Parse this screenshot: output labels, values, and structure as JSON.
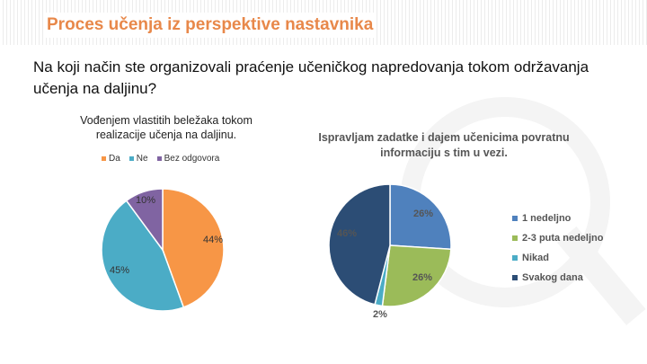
{
  "slide": {
    "title": "Proces učenja iz perspektive nastavnika",
    "question": "Na koji način ste organizovali praćenje učeničkog napredovanja tokom održavanja učenja na daljinu?"
  },
  "chart_data": [
    {
      "type": "pie",
      "title": "Vođenjem vlastitih beležaka tokom realizacije učenja na daljinu.",
      "legend_position": "top",
      "categories": [
        "Da",
        "Ne",
        "Bez odgovora"
      ],
      "values": [
        44,
        45,
        10
      ],
      "labels": [
        "44%",
        "45%",
        "10%"
      ],
      "colors": [
        "#f79646",
        "#4bacc6",
        "#8064a2"
      ]
    },
    {
      "type": "pie",
      "title": "Ispravljam zadatke i dajem učenicima povratnu informaciju s tim u vezi.",
      "legend_position": "right",
      "categories": [
        "1 nedeljno",
        "2-3 puta nedeljno",
        "Nikad",
        "Svakog dana"
      ],
      "values": [
        26,
        26,
        2,
        46
      ],
      "labels": [
        "26%",
        "26%",
        "2%",
        "46%"
      ],
      "colors": [
        "#4f81bd",
        "#9bbb59",
        "#4bacc6",
        "#2c4d75"
      ]
    }
  ]
}
